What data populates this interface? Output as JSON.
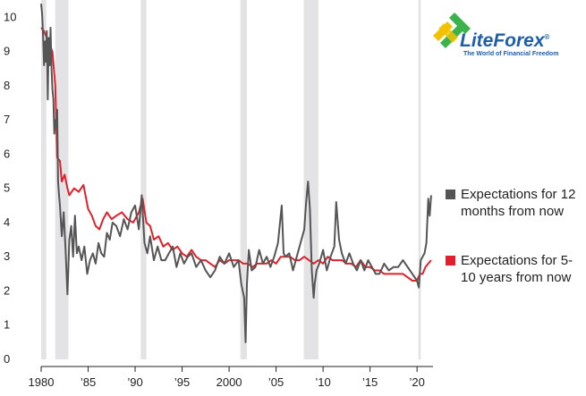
{
  "logo": {
    "name": "LiteForex",
    "reg_mark": "®",
    "tagline": "The World of Financial Freedom",
    "colors": {
      "green": "#3bb34a",
      "yellow": "#f2c200",
      "blue": "#1e5fa8"
    }
  },
  "legend": {
    "items": [
      {
        "label": "Expectations for 12 months from now",
        "color": "#555555"
      },
      {
        "label": "Expectations for 5-10 years from now",
        "color": "#e0212b"
      }
    ]
  },
  "chart_data": {
    "type": "line",
    "xlim": [
      1980,
      2021.7
    ],
    "ylim": [
      0,
      10.3
    ],
    "grid": false,
    "x_ticks": [
      1980,
      1985,
      1990,
      1995,
      2000,
      2005,
      2010,
      2015,
      2020
    ],
    "x_tick_labels": [
      "1980",
      "’85",
      "’90",
      "’95",
      "2000",
      "’05",
      "’10",
      "’15",
      "’20"
    ],
    "y_ticks": [
      0,
      1,
      2,
      3,
      4,
      5,
      6,
      7,
      8,
      9,
      10
    ],
    "y_tick_labels": [
      "0",
      "1",
      "2",
      "3",
      "4",
      "5",
      "6",
      "7",
      "8",
      "9",
      "10"
    ],
    "recessions": [
      [
        1980.0,
        1980.55
      ],
      [
        1981.5,
        1982.9
      ],
      [
        1990.6,
        1991.2
      ],
      [
        2001.2,
        2001.9
      ],
      [
        2007.95,
        2009.5
      ],
      [
        2020.15,
        2020.4
      ]
    ],
    "series": [
      {
        "name": "Expectations for 12 months from now",
        "color": "#555555",
        "x": [
          1980.0,
          1980.1,
          1980.2,
          1980.3,
          1980.4,
          1980.5,
          1980.6,
          1980.7,
          1980.8,
          1980.9,
          1981.0,
          1981.1,
          1981.2,
          1981.3,
          1981.4,
          1981.5,
          1981.6,
          1981.7,
          1981.8,
          1981.9,
          1982.0,
          1982.2,
          1982.4,
          1982.6,
          1982.8,
          1983.0,
          1983.2,
          1983.4,
          1983.6,
          1983.8,
          1984.0,
          1984.3,
          1984.6,
          1984.9,
          1985.2,
          1985.5,
          1985.8,
          1986.1,
          1986.4,
          1986.7,
          1987.0,
          1987.3,
          1987.6,
          1988.0,
          1988.4,
          1988.8,
          1989.2,
          1989.6,
          1990.0,
          1990.4,
          1990.7,
          1991.0,
          1991.3,
          1991.6,
          1992.0,
          1992.4,
          1992.8,
          1993.2,
          1993.6,
          1994.0,
          1994.4,
          1994.8,
          1995.2,
          1995.6,
          1996.0,
          1996.5,
          1997.0,
          1997.5,
          1998.0,
          1998.5,
          1999.0,
          1999.5,
          2000.0,
          2000.5,
          2001.0,
          2001.3,
          2001.6,
          2001.75,
          2001.9,
          2002.1,
          2002.4,
          2002.8,
          2003.2,
          2003.6,
          2004.0,
          2004.4,
          2004.8,
          2005.2,
          2005.6,
          2005.8,
          2006.0,
          2006.4,
          2006.8,
          2007.2,
          2007.6,
          2008.0,
          2008.2,
          2008.4,
          2008.6,
          2008.8,
          2009.0,
          2009.1,
          2009.3,
          2009.6,
          2010.0,
          2010.4,
          2010.8,
          2011.2,
          2011.4,
          2011.7,
          2012.0,
          2012.4,
          2012.8,
          2013.2,
          2013.6,
          2014.0,
          2014.4,
          2014.8,
          2015.2,
          2015.6,
          2016.0,
          2016.5,
          2017.0,
          2017.5,
          2018.0,
          2018.5,
          2019.0,
          2019.5,
          2020.0,
          2020.2,
          2020.4,
          2020.6,
          2020.8,
          2021.0,
          2021.2,
          2021.35,
          2021.5
        ],
        "values": [
          10.4,
          10.1,
          9.5,
          8.6,
          9.3,
          8.7,
          9.6,
          7.6,
          9.4,
          8.6,
          9.7,
          8.5,
          7.9,
          7.6,
          6.6,
          7.0,
          6.8,
          7.3,
          5.2,
          4.8,
          4.5,
          3.6,
          4.3,
          3.2,
          1.9,
          3.5,
          3.9,
          3.0,
          4.2,
          3.1,
          3.3,
          2.9,
          3.3,
          2.5,
          2.9,
          3.1,
          2.8,
          3.4,
          3.1,
          3.0,
          3.7,
          3.5,
          4.0,
          3.9,
          3.6,
          4.1,
          3.8,
          4.3,
          4.5,
          3.8,
          4.8,
          3.4,
          3.1,
          3.6,
          2.9,
          3.3,
          2.9,
          2.9,
          3.1,
          3.3,
          2.7,
          3.1,
          2.8,
          3.0,
          3.1,
          2.7,
          2.9,
          2.6,
          2.4,
          2.6,
          3.0,
          2.8,
          3.1,
          2.7,
          2.9,
          2.2,
          1.8,
          0.5,
          2.2,
          3.2,
          2.6,
          2.7,
          3.2,
          2.8,
          3.0,
          2.7,
          3.0,
          3.4,
          4.5,
          3.1,
          3.0,
          3.1,
          2.6,
          3.0,
          3.4,
          3.8,
          4.6,
          5.2,
          4.4,
          2.6,
          1.8,
          2.2,
          2.6,
          2.8,
          3.2,
          2.6,
          3.0,
          3.3,
          4.6,
          3.5,
          3.1,
          2.8,
          3.1,
          2.8,
          2.6,
          2.9,
          2.6,
          2.9,
          2.7,
          2.5,
          2.5,
          2.8,
          2.6,
          2.7,
          2.7,
          2.9,
          2.7,
          2.5,
          2.3,
          2.1,
          2.9,
          3.0,
          3.1,
          3.4,
          4.7,
          4.2,
          4.8
        ]
      },
      {
        "name": "Expectations for 5-10 years from now",
        "color": "#e0212b",
        "x": [
          1980.0,
          1980.3,
          1980.6,
          1980.9,
          1981.2,
          1981.5,
          1981.7,
          1982.0,
          1982.2,
          1982.5,
          1982.8,
          1983.0,
          1983.5,
          1984.0,
          1984.5,
          1985.0,
          1985.4,
          1985.8,
          1986.2,
          1986.6,
          1987.0,
          1987.5,
          1988.0,
          1988.6,
          1989.2,
          1989.8,
          1990.4,
          1990.8,
          1991.2,
          1991.6,
          1992.0,
          1992.5,
          1993.0,
          1993.5,
          1994.0,
          1994.5,
          1995.0,
          1995.5,
          1996.0,
          1996.5,
          1997.0,
          1997.5,
          1998.0,
          1998.5,
          1999.0,
          1999.5,
          2000.0,
          2000.5,
          2001.0,
          2001.5,
          2002.0,
          2002.5,
          2003.0,
          2003.5,
          2004.0,
          2004.5,
          2005.0,
          2005.5,
          2006.0,
          2006.5,
          2007.0,
          2007.5,
          2008.0,
          2008.5,
          2009.0,
          2009.5,
          2010.0,
          2010.5,
          2011.0,
          2011.5,
          2012.0,
          2012.5,
          2013.0,
          2013.5,
          2014.0,
          2014.5,
          2015.0,
          2015.5,
          2016.0,
          2016.5,
          2017.0,
          2017.5,
          2018.0,
          2018.5,
          2019.0,
          2019.5,
          2020.0,
          2020.3,
          2020.6,
          2020.9,
          2021.2,
          2021.5
        ],
        "values": [
          9.7,
          9.6,
          9.4,
          9.2,
          9.0,
          8.0,
          5.9,
          5.8,
          5.2,
          5.4,
          5.0,
          4.8,
          5.0,
          4.9,
          5.1,
          4.4,
          4.2,
          3.9,
          3.8,
          4.1,
          4.3,
          4.1,
          4.2,
          4.3,
          4.1,
          4.0,
          4.3,
          4.7,
          4.0,
          3.9,
          3.5,
          3.6,
          3.3,
          3.4,
          3.2,
          3.3,
          3.1,
          3.0,
          3.2,
          3.0,
          2.9,
          2.9,
          2.8,
          2.7,
          2.9,
          2.8,
          2.9,
          2.9,
          2.9,
          2.8,
          2.8,
          2.7,
          2.8,
          2.8,
          2.8,
          2.9,
          2.8,
          3.0,
          3.0,
          3.0,
          2.9,
          2.9,
          3.0,
          2.9,
          2.8,
          2.9,
          2.8,
          3.0,
          2.9,
          2.9,
          2.9,
          2.8,
          2.8,
          2.7,
          2.9,
          2.7,
          2.7,
          2.6,
          2.6,
          2.5,
          2.5,
          2.5,
          2.5,
          2.5,
          2.4,
          2.3,
          2.3,
          2.5,
          2.5,
          2.7,
          2.8,
          2.9
        ]
      }
    ]
  }
}
